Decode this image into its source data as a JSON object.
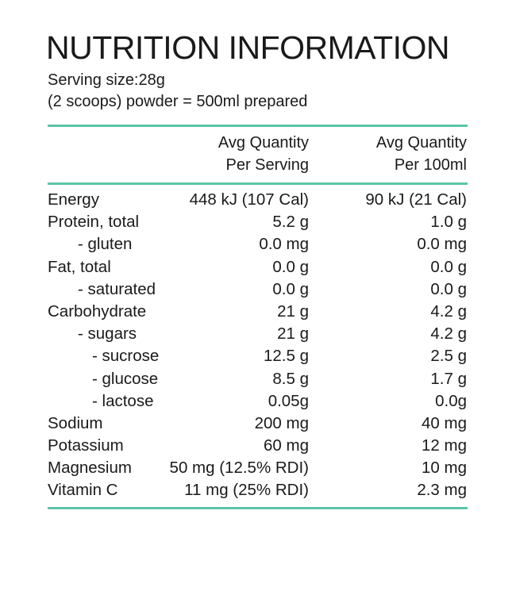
{
  "title": "NUTRITION INFORMATION",
  "serving_size": "Serving size:28g",
  "serving_note": "(2 scoops) powder = 500ml prepared",
  "accent_color": "#5cc4a8",
  "columns": {
    "per_serving": [
      "Avg Quantity",
      "Per Serving"
    ],
    "per_100ml": [
      "Avg Quantity",
      "Per 100ml"
    ]
  },
  "rows": [
    {
      "name": "Energy",
      "level": 0,
      "per_serving": "448 kJ (107 Cal)",
      "per_100ml": "90 kJ (21 Cal)"
    },
    {
      "name": "Protein, total",
      "level": 0,
      "per_serving": "5.2 g",
      "per_100ml": "1.0 g"
    },
    {
      "name": "- gluten",
      "level": 1,
      "per_serving": "0.0 mg",
      "per_100ml": "0.0 mg"
    },
    {
      "name": "Fat, total",
      "level": 0,
      "per_serving": "0.0 g",
      "per_100ml": "0.0 g"
    },
    {
      "name": "- saturated",
      "level": 1,
      "per_serving": "0.0 g",
      "per_100ml": "0.0 g"
    },
    {
      "name": "Carbohydrate",
      "level": 0,
      "per_serving": "21 g",
      "per_100ml": "4.2 g"
    },
    {
      "name": "- sugars",
      "level": 1,
      "per_serving": "21 g",
      "per_100ml": "4.2 g"
    },
    {
      "name": "- sucrose",
      "level": 2,
      "per_serving": "12.5 g",
      "per_100ml": "2.5 g"
    },
    {
      "name": "- glucose",
      "level": 2,
      "per_serving": "8.5 g",
      "per_100ml": "1.7 g"
    },
    {
      "name": "- lactose",
      "level": 2,
      "per_serving": "0.05g",
      "per_100ml": "0.0g"
    },
    {
      "name": "Sodium",
      "level": 0,
      "per_serving": "200 mg",
      "per_100ml": "40 mg"
    },
    {
      "name": "Potassium",
      "level": 0,
      "per_serving": "60 mg",
      "per_100ml": "12 mg"
    },
    {
      "name": "Magnesium",
      "level": 0,
      "per_serving": "50 mg (12.5% RDI)",
      "per_100ml": "10 mg"
    },
    {
      "name": "Vitamin C",
      "level": 0,
      "per_serving": "11 mg (25% RDI)",
      "per_100ml": "2.3 mg"
    }
  ]
}
